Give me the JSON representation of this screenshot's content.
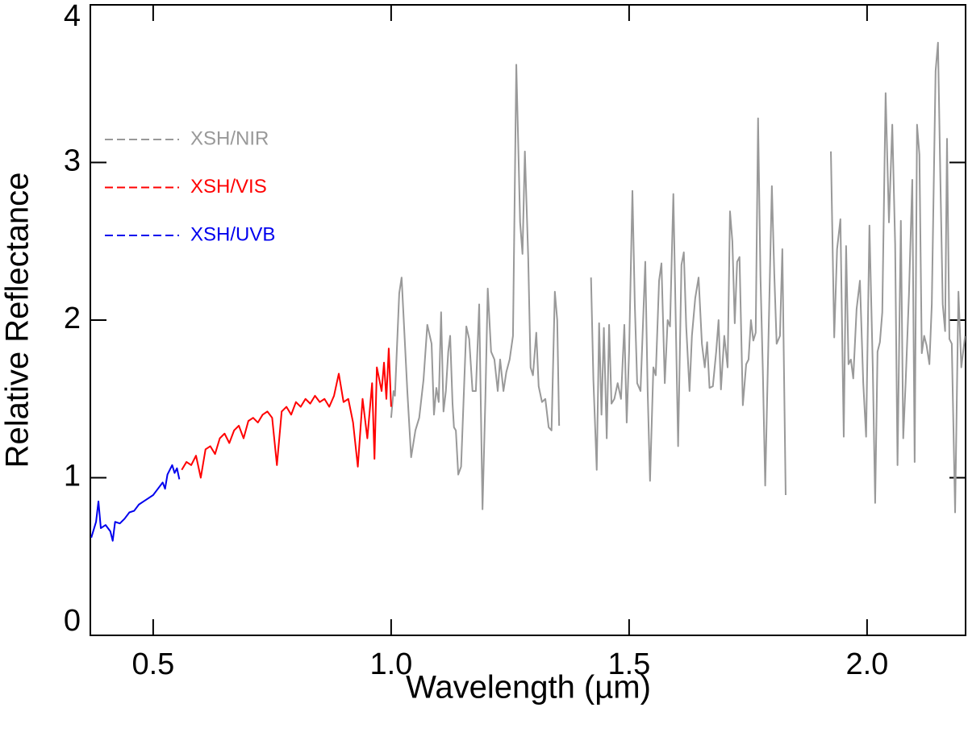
{
  "chart_data": {
    "type": "line",
    "xlabel": "Wavelength (µm)",
    "ylabel": "Relative Reflectance",
    "xlim": [
      0.368,
      2.207
    ],
    "ylim": [
      0,
      4
    ],
    "xticks": [
      0.5,
      {
        "value": 1,
        "label": "1.0"
      },
      1.5,
      {
        "value": 2,
        "label": "2.0"
      }
    ],
    "yticks": [
      0,
      1,
      2,
      3,
      4
    ],
    "legend": "upper left",
    "series": [
      {
        "name": "XSH/NIR",
        "color": "#999999",
        "x": [
          1.0,
          1.005,
          1.008,
          1.017,
          1.022,
          1.034,
          1.042,
          1.051,
          1.059,
          1.068,
          1.076,
          1.085,
          1.09,
          1.095,
          1.1,
          1.105,
          1.11,
          1.115,
          1.12,
          1.124,
          1.129,
          1.132,
          1.136,
          1.141,
          1.147,
          1.158,
          1.164,
          1.171,
          1.178,
          1.185,
          1.192,
          1.198,
          1.203,
          1.21,
          1.217,
          1.224,
          1.229,
          1.236,
          1.242,
          1.249,
          1.256,
          1.263,
          1.271,
          1.276,
          1.281,
          1.288,
          1.293,
          1.298,
          1.305,
          1.31,
          1.317,
          1.324,
          1.331,
          1.337,
          1.344,
          1.349,
          1.353,
          1.39,
          1.42,
          1.425,
          1.432,
          1.437,
          1.442,
          1.447,
          1.453,
          1.458,
          1.463,
          1.469,
          1.476,
          1.483,
          1.49,
          1.495,
          1.5,
          1.507,
          1.512,
          1.517,
          1.524,
          1.534,
          1.539,
          1.544,
          1.551,
          1.556,
          1.563,
          1.568,
          1.575,
          1.581,
          1.586,
          1.593,
          1.598,
          1.603,
          1.61,
          1.615,
          1.62,
          1.627,
          1.632,
          1.639,
          1.646,
          1.653,
          1.659,
          1.664,
          1.669,
          1.676,
          1.683,
          1.688,
          1.693,
          1.7,
          1.707,
          1.712,
          1.717,
          1.722,
          1.727,
          1.732,
          1.739,
          1.746,
          1.751,
          1.756,
          1.761,
          1.766,
          1.771,
          1.776,
          1.781,
          1.786,
          1.793,
          1.8,
          1.805,
          1.81,
          1.817,
          1.822,
          1.829,
          1.88,
          1.924,
          1.931,
          1.937,
          1.944,
          1.951,
          1.956,
          1.961,
          1.966,
          1.971,
          1.978,
          1.985,
          1.992,
          1.998,
          2.005,
          2.012,
          2.017,
          2.022,
          2.027,
          2.032,
          2.039,
          2.046,
          2.053,
          2.059,
          2.064,
          2.071,
          2.076,
          2.081,
          2.088,
          2.095,
          2.1,
          2.105,
          2.11,
          2.115,
          2.12,
          2.125,
          2.131,
          2.136,
          2.144,
          2.149,
          2.154,
          2.159,
          2.164,
          2.168,
          2.173,
          2.178,
          2.185,
          2.192,
          2.198,
          2.206
        ],
        "values": [
          1.38,
          1.55,
          1.52,
          2.17,
          2.27,
          1.55,
          1.13,
          1.3,
          1.38,
          1.62,
          1.97,
          1.85,
          1.4,
          1.57,
          1.48,
          2.05,
          1.42,
          1.55,
          1.8,
          1.9,
          1.47,
          1.32,
          1.3,
          1.02,
          1.07,
          1.96,
          1.88,
          1.55,
          1.55,
          2.1,
          0.8,
          1.5,
          2.2,
          1.8,
          1.75,
          1.55,
          1.75,
          1.55,
          1.67,
          1.75,
          1.9,
          3.62,
          2.62,
          2.42,
          3.07,
          2.4,
          1.7,
          1.65,
          1.92,
          1.58,
          1.48,
          1.5,
          1.32,
          1.3,
          2.18,
          2.0,
          1.33,
          null,
          2.27,
          1.62,
          1.05,
          1.98,
          1.4,
          1.95,
          1.25,
          1.97,
          1.47,
          1.5,
          1.6,
          1.5,
          1.97,
          1.35,
          1.8,
          2.82,
          2.1,
          1.6,
          1.55,
          2.37,
          1.55,
          0.98,
          1.7,
          1.65,
          2.25,
          2.36,
          1.6,
          2.0,
          1.96,
          2.8,
          2.0,
          1.2,
          2.35,
          2.43,
          1.96,
          1.55,
          1.9,
          2.14,
          2.27,
          1.85,
          1.7,
          1.86,
          1.57,
          1.58,
          1.8,
          2.0,
          1.56,
          1.9,
          1.7,
          2.69,
          2.5,
          1.98,
          2.37,
          2.4,
          1.46,
          1.72,
          1.75,
          2.0,
          1.87,
          1.92,
          3.28,
          2.28,
          1.68,
          0.95,
          1.9,
          2.85,
          2.3,
          1.85,
          1.9,
          2.45,
          0.89,
          null,
          3.07,
          1.89,
          2.45,
          2.64,
          1.26,
          2.47,
          1.72,
          1.75,
          1.63,
          2.07,
          2.25,
          1.6,
          1.26,
          2.6,
          1.7,
          0.84,
          1.8,
          1.86,
          2.05,
          3.44,
          2.62,
          3.24,
          2.48,
          1.08,
          2.63,
          1.25,
          1.6,
          2.16,
          2.89,
          1.1,
          3.24,
          3.05,
          1.79,
          1.9,
          1.84,
          1.72,
          2.1,
          3.58,
          3.76,
          2.9,
          2.1,
          1.93,
          3.15,
          1.88,
          1.85,
          0.78,
          2.18,
          1.7,
          1.9
        ]
      },
      {
        "name": "XSH/VIS",
        "color": "#ff0000",
        "x": [
          0.56,
          0.57,
          0.58,
          0.59,
          0.6,
          0.61,
          0.62,
          0.63,
          0.64,
          0.65,
          0.66,
          0.67,
          0.68,
          0.69,
          0.7,
          0.71,
          0.72,
          0.73,
          0.74,
          0.75,
          0.76,
          0.77,
          0.78,
          0.79,
          0.8,
          0.81,
          0.82,
          0.83,
          0.84,
          0.85,
          0.86,
          0.87,
          0.88,
          0.89,
          0.9,
          0.91,
          0.92,
          0.93,
          0.94,
          0.95,
          0.96,
          0.965,
          0.97,
          0.98,
          0.985,
          0.99,
          0.995,
          1.0
        ],
        "values": [
          1.05,
          1.1,
          1.08,
          1.14,
          1.0,
          1.18,
          1.2,
          1.15,
          1.25,
          1.28,
          1.22,
          1.3,
          1.33,
          1.25,
          1.36,
          1.38,
          1.35,
          1.4,
          1.42,
          1.38,
          1.08,
          1.42,
          1.45,
          1.4,
          1.48,
          1.45,
          1.5,
          1.47,
          1.52,
          1.48,
          1.5,
          1.45,
          1.52,
          1.66,
          1.48,
          1.5,
          1.35,
          1.07,
          1.5,
          1.25,
          1.6,
          1.12,
          1.7,
          1.55,
          1.73,
          1.5,
          1.82,
          1.45
        ]
      },
      {
        "name": "XSH/UVB",
        "color": "#0000ee",
        "x": [
          0.37,
          0.38,
          0.385,
          0.39,
          0.4,
          0.41,
          0.415,
          0.42,
          0.43,
          0.44,
          0.45,
          0.46,
          0.47,
          0.48,
          0.49,
          0.5,
          0.51,
          0.52,
          0.525,
          0.53,
          0.54,
          0.545,
          0.55,
          0.555
        ],
        "values": [
          0.62,
          0.72,
          0.85,
          0.68,
          0.7,
          0.66,
          0.6,
          0.72,
          0.71,
          0.74,
          0.78,
          0.79,
          0.83,
          0.85,
          0.87,
          0.89,
          0.93,
          0.97,
          0.93,
          1.02,
          1.08,
          1.03,
          1.06,
          0.99
        ]
      }
    ]
  }
}
